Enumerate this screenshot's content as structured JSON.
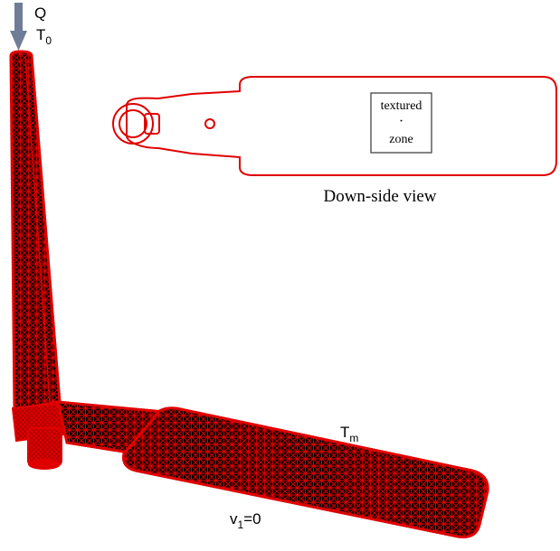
{
  "load": {
    "force_symbol": "Q",
    "temp_symbol": "T",
    "temp_subscript": "0"
  },
  "boundary": {
    "temp_symbol": "T",
    "temp_subscript": "m",
    "velocity_symbol": "v",
    "velocity_subscript": "1",
    "velocity_value": "=0"
  },
  "inset": {
    "zone_line1": "textured",
    "zone_dot": "·",
    "zone_line2": "zone",
    "caption": "Down-side view"
  },
  "colors": {
    "mesh_outline": "#e00000",
    "mesh_fill": "#100000",
    "arrow": "#6f7d96",
    "text": "#000000"
  }
}
